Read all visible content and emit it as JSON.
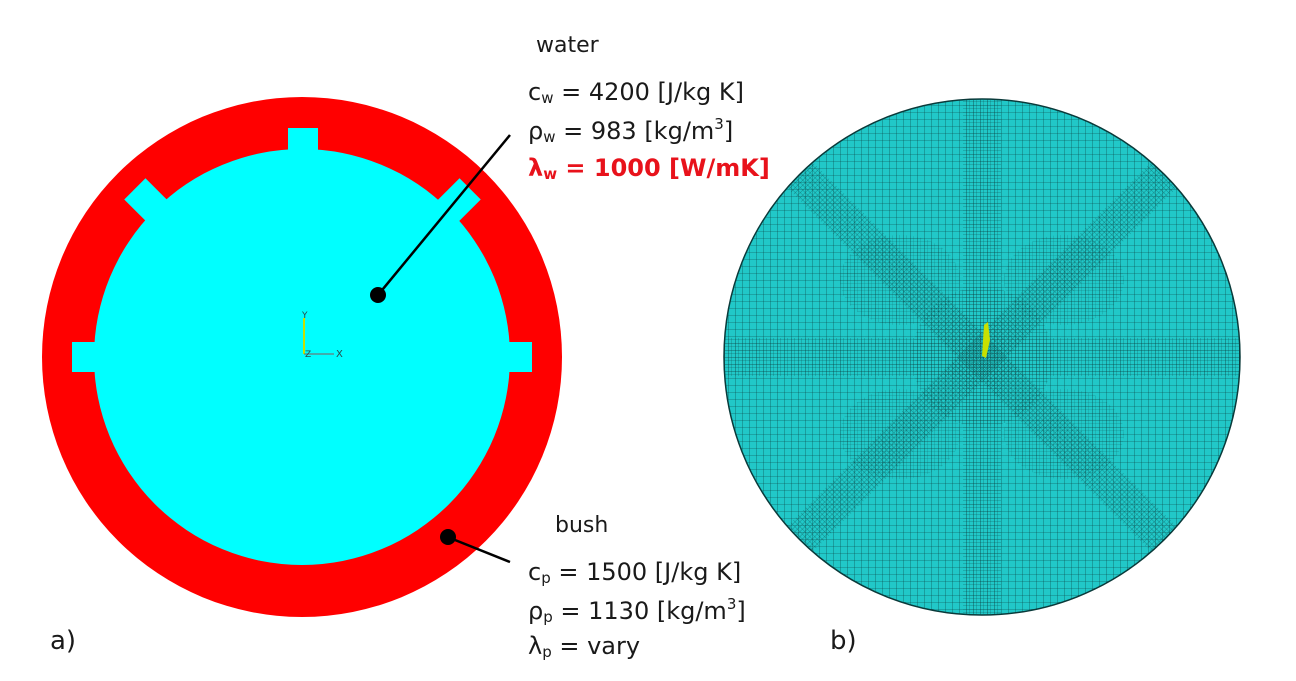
{
  "colors": {
    "bush": "#ff0000",
    "water": "#00ffff",
    "mesh_fill": "#21c8c8",
    "mesh_line": "#0a3a3a",
    "highlight": "#e8121b",
    "axis_marker": "#c8e000"
  },
  "panel_a": {
    "label": "a)",
    "axis_labels": {
      "x": "X",
      "y": "Y",
      "z": "Z"
    },
    "water": {
      "heading": "water",
      "props": [
        {
          "sym": "c",
          "sub": "w",
          "text": " = 4200 [J/kg K]",
          "sup": "",
          "tail": "",
          "highlight": false
        },
        {
          "sym": "ρ",
          "sub": "w",
          "text": " = 983 [kg/m",
          "sup": "3",
          "tail": "]",
          "highlight": false
        },
        {
          "sym": "λ",
          "sub": "w",
          "text": " = 1000 [W/mK]",
          "sup": "",
          "tail": "",
          "highlight": true
        }
      ]
    },
    "bush": {
      "heading": "bush",
      "props": [
        {
          "sym": "c",
          "sub": "p",
          "text": " = 1500 [J/kg K]",
          "sup": "",
          "tail": "",
          "highlight": false
        },
        {
          "sym": "ρ",
          "sub": "p",
          "text": " = 1130 [kg/m",
          "sup": "3",
          "tail": "]",
          "highlight": false
        },
        {
          "sym": "λ",
          "sub": "p",
          "text": " = vary",
          "sup": "",
          "tail": "",
          "highlight": false
        }
      ]
    }
  },
  "panel_b": {
    "label": "b)"
  }
}
